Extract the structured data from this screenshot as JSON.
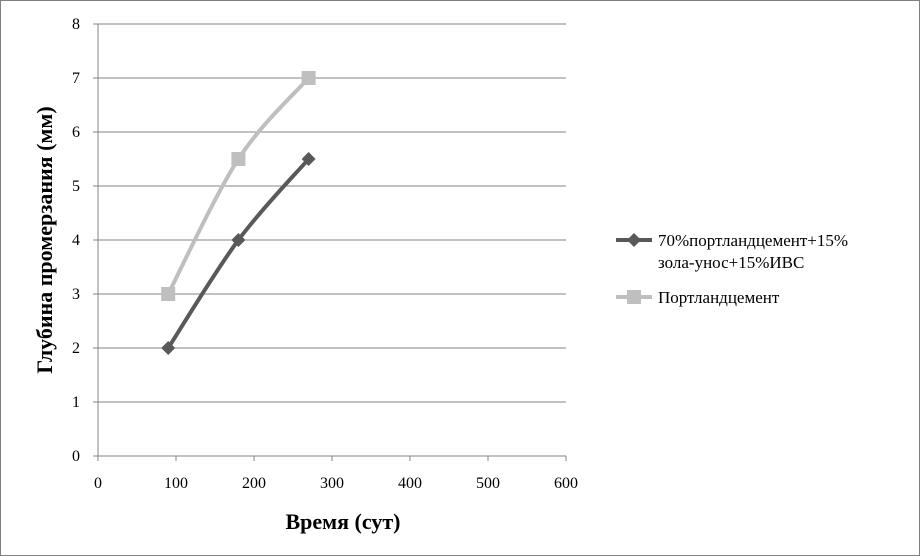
{
  "chart_data": {
    "type": "line",
    "title": "",
    "xlabel": "Время (сут)",
    "ylabel": "Глубина промерзания (мм)",
    "xlim": [
      0,
      600
    ],
    "ylim": [
      0,
      8
    ],
    "x_ticks": [
      "0",
      "100",
      "200",
      "300",
      "400",
      "500",
      "600"
    ],
    "y_ticks": [
      "0",
      "1",
      "2",
      "3",
      "4",
      "5",
      "6",
      "7",
      "8"
    ],
    "grid": "horizontal",
    "legend_position": "right",
    "series": [
      {
        "name_lines": [
          "70%портландцемент+15%",
          "зола-унос+15%ИВС"
        ],
        "color": "#595959",
        "marker": "diamond",
        "x": [
          90,
          180,
          270
        ],
        "y": [
          2,
          4,
          5.5
        ]
      },
      {
        "name_lines": [
          "Портландцемент"
        ],
        "color": "#bfbfbf",
        "marker": "square",
        "x": [
          90,
          180,
          270
        ],
        "y": [
          3,
          5.5,
          7
        ]
      }
    ]
  }
}
